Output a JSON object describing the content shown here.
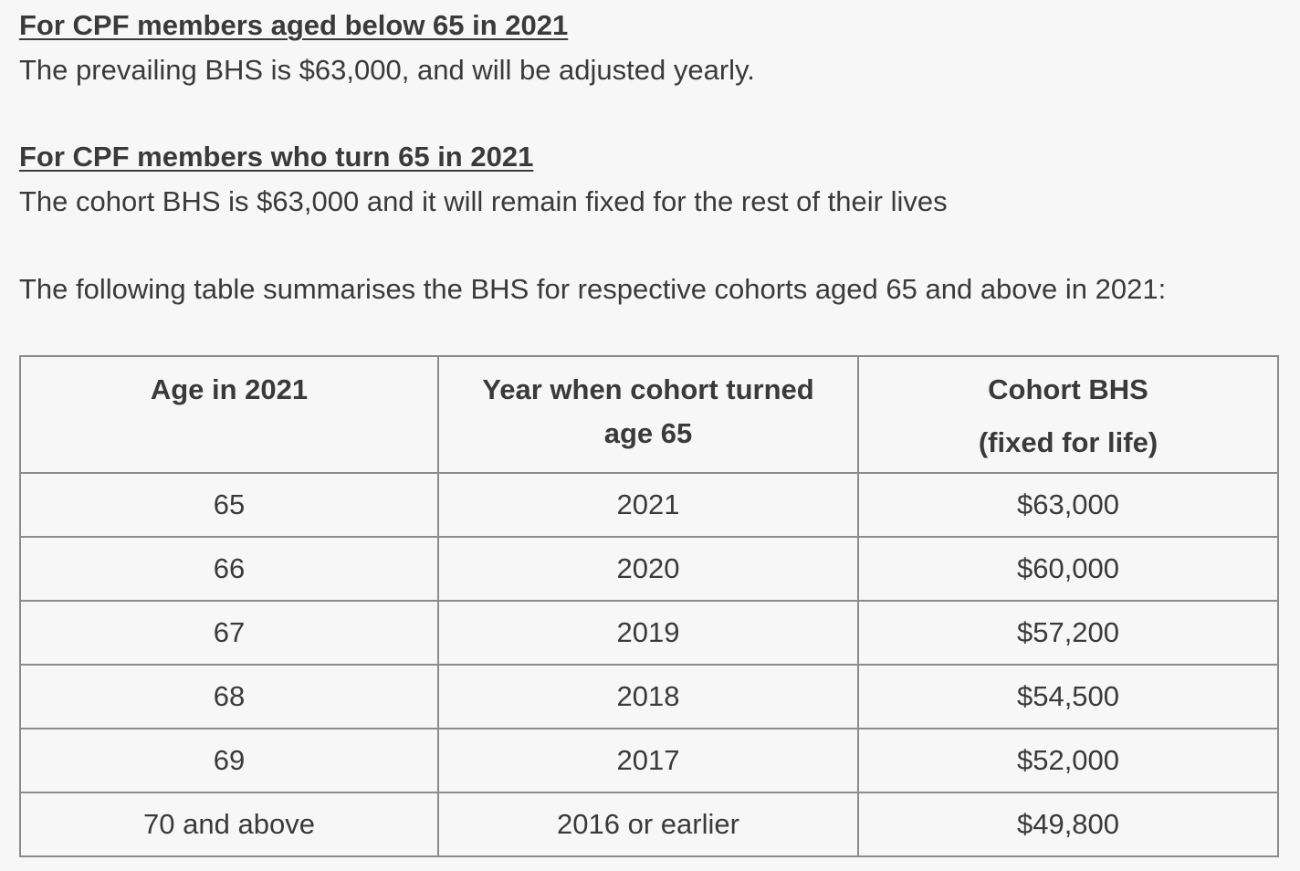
{
  "section_below_65": {
    "heading": "For CPF members aged below 65 in 2021",
    "text": "The prevailing BHS is $63,000, and will be adjusted yearly."
  },
  "section_turn_65": {
    "heading": "For CPF members who turn 65 in 2021",
    "text": "The cohort BHS is $63,000 and it will remain fixed for the rest of their lives"
  },
  "table_intro": "The following table summarises the BHS for respective cohorts aged 65 and above in 2021:",
  "table": {
    "headers": [
      {
        "line1": "Age in 2021",
        "line2": ""
      },
      {
        "line1": "Year when cohort turned",
        "line2": "age 65"
      },
      {
        "line1": "Cohort BHS",
        "line2": "(fixed for life)"
      }
    ],
    "rows": [
      [
        "65",
        "2021",
        "$63,000"
      ],
      [
        "66",
        "2020",
        "$60,000"
      ],
      [
        "67",
        "2019",
        "$57,200"
      ],
      [
        "68",
        "2018",
        "$54,500"
      ],
      [
        "69",
        "2017",
        "$52,000"
      ],
      [
        "70 and above",
        "2016 or earlier",
        "$49,800"
      ]
    ]
  }
}
